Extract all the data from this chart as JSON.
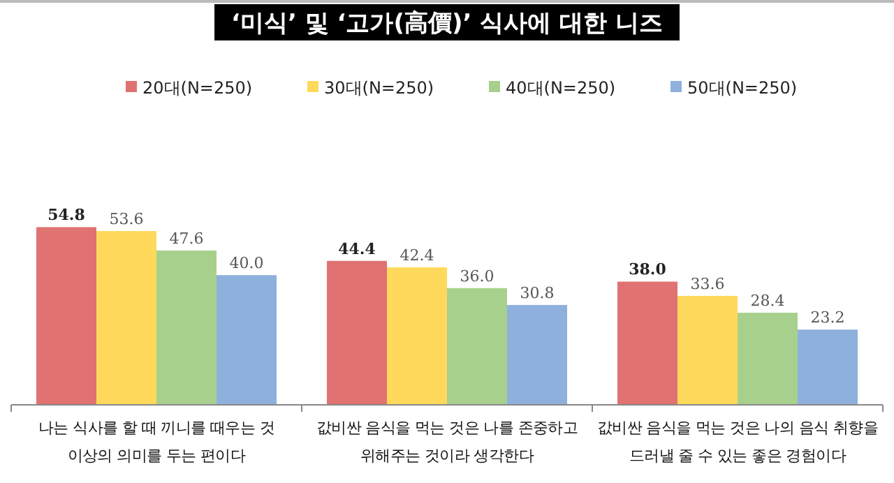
{
  "chart_data": {
    "type": "bar",
    "title": "‘미식’ 및 ‘고가(高價)’ 식사에 대한 니즈",
    "categories": [
      "나는 식사를 할 때 끼니를 때우는 것\n이상의 의미를 두는 편이다",
      "값비싼 음식을 먹는 것은 나를 존중하고\n위해주는 것이라 생각한다",
      "값비싼 음식을 먹는 것은 나의 음식 취향을\n드러낼 줄 수 있는 좋은 경험이다"
    ],
    "series": [
      {
        "name": "20대(N=250)",
        "color": "#e07272",
        "values": [
          54.8,
          44.4,
          38.0
        ],
        "value_labels": [
          "54.8",
          "44.4",
          "38.0"
        ]
      },
      {
        "name": "30대(N=250)",
        "color": "#ffd95c",
        "values": [
          53.6,
          42.4,
          33.6
        ],
        "value_labels": [
          "53.6",
          "42.4",
          "33.6"
        ]
      },
      {
        "name": "40대(N=250)",
        "color": "#a8d08d",
        "values": [
          47.6,
          36.0,
          28.4
        ],
        "value_labels": [
          "47.6",
          "36.0",
          "28.4"
        ]
      },
      {
        "name": "50대(N=250)",
        "color": "#8eb0dd",
        "values": [
          40.0,
          30.8,
          23.2
        ],
        "value_labels": [
          "40.0",
          "30.8",
          "23.2"
        ]
      }
    ],
    "legend": "top"
  }
}
